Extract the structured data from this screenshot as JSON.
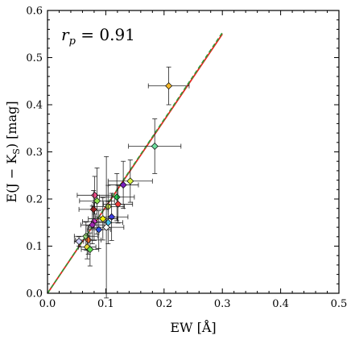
{
  "chart_data": {
    "type": "scatter",
    "title": "",
    "xlabel": "EW [Å]",
    "ylabel": "E(J − K",
    "ylabel_sub": "S",
    "ylabel_tail": ") [mag]",
    "xlim": [
      0.0,
      0.5
    ],
    "ylim": [
      0.0,
      0.6
    ],
    "xticks": [
      "0.0",
      "0.1",
      "0.2",
      "0.3",
      "0.4",
      "0.5"
    ],
    "yticks": [
      "0.0",
      "0.1",
      "0.2",
      "0.3",
      "0.4",
      "0.5",
      "0.6"
    ],
    "grid": false,
    "annotation": {
      "symbol": "r",
      "sub": "p",
      "text": " = 0.91"
    },
    "fit_lines": [
      {
        "name": "fit-solid",
        "style": "solid",
        "color": "#e8251f",
        "x": [
          0.0,
          0.3
        ],
        "y": [
          0.0,
          0.55
        ]
      },
      {
        "name": "fit-dashed",
        "style": "dashed",
        "color": "#2e9a36",
        "x": [
          0.0,
          0.3
        ],
        "y": [
          0.0,
          0.553
        ]
      }
    ],
    "points": [
      {
        "x": 0.208,
        "y": 0.44,
        "xerr": 0.035,
        "yerr": 0.04,
        "color": "#f5b82b"
      },
      {
        "x": 0.184,
        "y": 0.312,
        "xerr": 0.045,
        "yerr": 0.058,
        "color": "#6fe0a0"
      },
      {
        "x": 0.142,
        "y": 0.238,
        "xerr": 0.038,
        "yerr": 0.045,
        "color": "#d8f23e"
      },
      {
        "x": 0.13,
        "y": 0.23,
        "xerr": 0.026,
        "yerr": 0.05,
        "color": "#7b1fc0"
      },
      {
        "x": 0.119,
        "y": 0.204,
        "xerr": 0.03,
        "yerr": 0.05,
        "color": "#22c24a"
      },
      {
        "x": 0.121,
        "y": 0.189,
        "xerr": 0.025,
        "yerr": 0.04,
        "color": "#ee3b3b"
      },
      {
        "x": 0.081,
        "y": 0.208,
        "xerr": 0.03,
        "yerr": 0.04,
        "color": "#f24a8a"
      },
      {
        "x": 0.085,
        "y": 0.196,
        "xerr": 0.03,
        "yerr": 0.07,
        "color": "#8ee04a"
      },
      {
        "x": 0.104,
        "y": 0.184,
        "xerr": 0.028,
        "yerr": 0.045,
        "color": "#c9e84a"
      },
      {
        "x": 0.079,
        "y": 0.178,
        "xerr": 0.025,
        "yerr": 0.04,
        "color": "#d02020"
      },
      {
        "x": 0.11,
        "y": 0.162,
        "xerr": 0.028,
        "yerr": 0.05,
        "color": "#3a3ae0"
      },
      {
        "x": 0.095,
        "y": 0.158,
        "xerr": 0.025,
        "yerr": 0.045,
        "color": "#f0f000"
      },
      {
        "x": 0.08,
        "y": 0.152,
        "xerr": 0.02,
        "yerr": 0.04,
        "color": "#e23ad8"
      },
      {
        "x": 0.104,
        "y": 0.15,
        "xerr": 0.025,
        "yerr": 0.045,
        "color": "#45c8f0"
      },
      {
        "x": 0.077,
        "y": 0.145,
        "xerr": 0.02,
        "yerr": 0.04,
        "color": "#9c27b0"
      },
      {
        "x": 0.088,
        "y": 0.135,
        "xerr": 0.02,
        "yerr": 0.04,
        "color": "#3050e0"
      },
      {
        "x": 0.101,
        "y": 0.14,
        "xerr": 0.03,
        "yerr": 0.15,
        "color": "#ffffff"
      },
      {
        "x": 0.066,
        "y": 0.121,
        "xerr": 0.02,
        "yerr": 0.03,
        "color": "#a0e080"
      },
      {
        "x": 0.07,
        "y": 0.113,
        "xerr": 0.022,
        "yerr": 0.03,
        "color": "#f07030"
      },
      {
        "x": 0.054,
        "y": 0.11,
        "xerr": 0.008,
        "yerr": 0.01,
        "color": "#d0d0ff"
      },
      {
        "x": 0.068,
        "y": 0.098,
        "xerr": 0.015,
        "yerr": 0.025,
        "color": "#e8d838"
      },
      {
        "x": 0.073,
        "y": 0.093,
        "xerr": 0.015,
        "yerr": 0.035,
        "color": "#60e050"
      }
    ]
  }
}
